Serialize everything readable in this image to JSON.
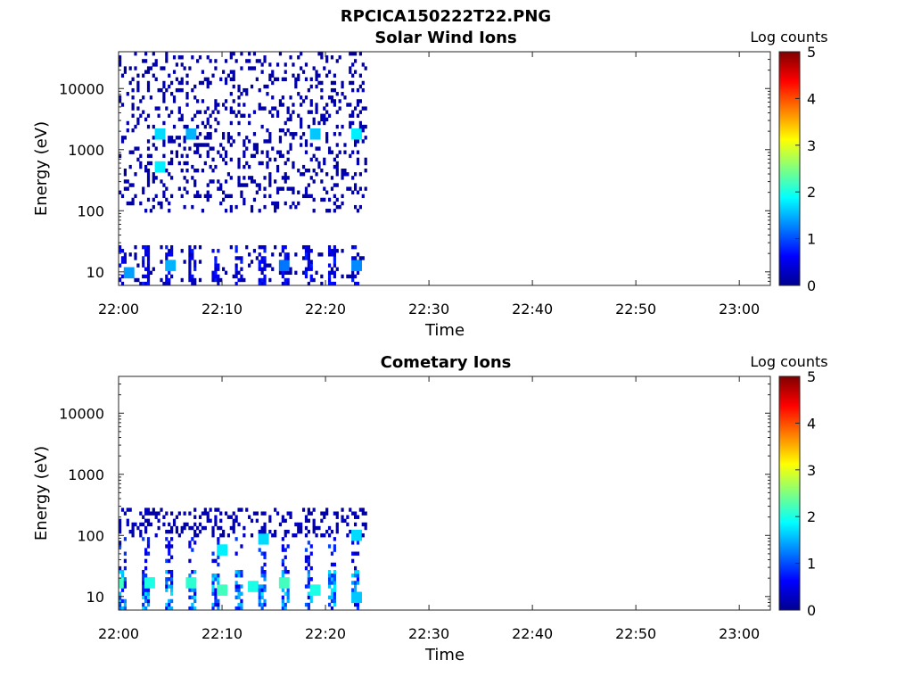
{
  "figure_title": "RPCICA150222T22.PNG",
  "colorbar": {
    "label": "Log counts",
    "ticks": [
      "0",
      "1",
      "2",
      "3",
      "4",
      "5"
    ],
    "range": [
      0,
      5
    ],
    "colormap": "jet"
  },
  "chart_data": [
    {
      "type": "heatmap",
      "title": "Solar Wind Ions",
      "xlabel": "Time",
      "ylabel": "Energy (eV)",
      "x_ticks": [
        "22:00",
        "22:10",
        "22:20",
        "22:30",
        "22:40",
        "22:50",
        "23:00"
      ],
      "y_ticks": [
        "10",
        "100",
        "1000",
        "10000"
      ],
      "y_scale": "log",
      "y_range": [
        6,
        40000
      ],
      "x_range": [
        "22:00",
        "23:03"
      ],
      "data_end": "22:24",
      "color_range": [
        0,
        5
      ],
      "hot_spots": [
        {
          "time": "22:04",
          "energy": 1800,
          "log_counts": 1.7
        },
        {
          "time": "22:07",
          "energy": 1800,
          "log_counts": 1.5
        },
        {
          "time": "22:04",
          "energy": 500,
          "log_counts": 1.8
        },
        {
          "time": "22:19",
          "energy": 1800,
          "log_counts": 1.6
        },
        {
          "time": "22:23",
          "energy": 1800,
          "log_counts": 1.8
        },
        {
          "time": "22:01",
          "energy": 10,
          "log_counts": 1.4
        },
        {
          "time": "22:05",
          "energy": 12,
          "log_counts": 1.5
        },
        {
          "time": "22:16",
          "energy": 12,
          "log_counts": 1.2
        },
        {
          "time": "22:23",
          "energy": 12,
          "log_counts": 1.3
        }
      ]
    },
    {
      "type": "heatmap",
      "title": "Cometary Ions",
      "xlabel": "Time",
      "ylabel": "Energy (eV)",
      "x_ticks": [
        "22:00",
        "22:10",
        "22:20",
        "22:30",
        "22:40",
        "22:50",
        "23:00"
      ],
      "y_ticks": [
        "10",
        "100",
        "1000",
        "10000"
      ],
      "y_scale": "log",
      "y_range": [
        6,
        40000
      ],
      "x_range": [
        "22:00",
        "23:03"
      ],
      "data_end": "22:24",
      "color_range": [
        0,
        5
      ],
      "hot_spots": [
        {
          "time": "22:00",
          "energy": 18,
          "log_counts": 2.2
        },
        {
          "time": "22:03",
          "energy": 18,
          "log_counts": 2.0
        },
        {
          "time": "22:07",
          "energy": 18,
          "log_counts": 2.1
        },
        {
          "time": "22:10",
          "energy": 12,
          "log_counts": 2.2
        },
        {
          "time": "22:13",
          "energy": 15,
          "log_counts": 2.0
        },
        {
          "time": "22:16",
          "energy": 18,
          "log_counts": 2.2
        },
        {
          "time": "22:19",
          "energy": 12,
          "log_counts": 2.0
        },
        {
          "time": "22:23",
          "energy": 10,
          "log_counts": 1.6
        },
        {
          "time": "22:10",
          "energy": 60,
          "log_counts": 1.8
        },
        {
          "time": "22:14",
          "energy": 90,
          "log_counts": 1.7
        },
        {
          "time": "22:23",
          "energy": 100,
          "log_counts": 1.7
        }
      ]
    }
  ]
}
